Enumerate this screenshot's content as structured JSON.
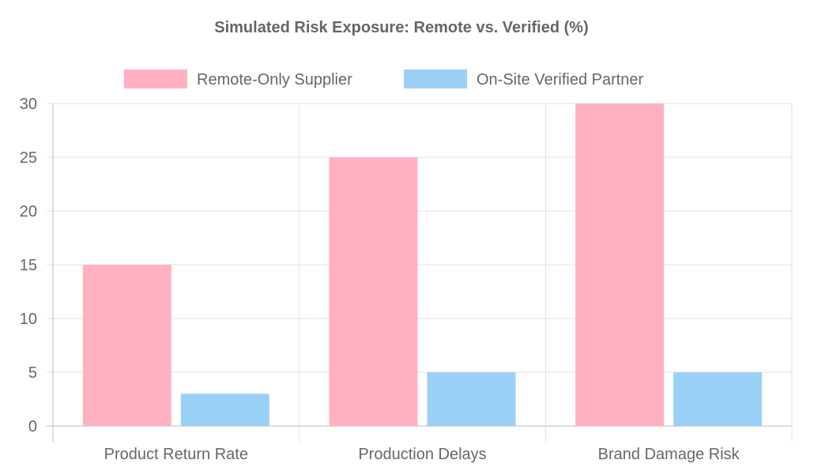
{
  "chart_data": {
    "type": "bar",
    "title": "Simulated Risk Exposure: Remote vs. Verified (%)",
    "categories": [
      "Product Return Rate",
      "Production Delays",
      "Brand Damage Risk"
    ],
    "series": [
      {
        "name": "Remote-Only Supplier",
        "values": [
          15,
          25,
          30
        ],
        "color": "#FFB1C1"
      },
      {
        "name": "On-Site Verified Partner",
        "values": [
          3,
          5,
          5
        ],
        "color": "#9AD0F5"
      }
    ],
    "xlabel": "",
    "ylabel": "",
    "ylim": [
      0,
      30
    ],
    "yticks": [
      "0",
      "5",
      "10",
      "15",
      "20",
      "25",
      "30"
    ],
    "grid": true,
    "legend": "top"
  }
}
